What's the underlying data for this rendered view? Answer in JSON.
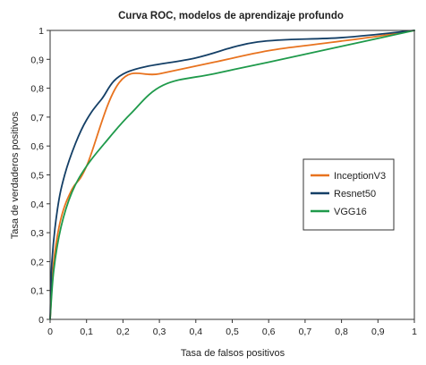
{
  "chart_data": {
    "type": "line",
    "title": "Curva ROC, modelos de aprendizaje profundo",
    "xlabel": "Tasa de falsos positivos",
    "ylabel": "Tasa de verdaderos positivos",
    "xlim": [
      0,
      1
    ],
    "ylim": [
      0,
      1
    ],
    "x_ticks": [
      0,
      0.1,
      0.2,
      0.3,
      0.4,
      0.5,
      0.6,
      0.7,
      0.8,
      0.9,
      1
    ],
    "x_tick_labels": [
      "0",
      "0,1",
      "0,2",
      "0,3",
      "0,4",
      "0,5",
      "0,6",
      "0,7",
      "0,8",
      "0,9",
      "1"
    ],
    "y_ticks": [
      0,
      0.1,
      0.2,
      0.3,
      0.4,
      0.5,
      0.6,
      0.7,
      0.8,
      0.9,
      1
    ],
    "y_tick_labels": [
      "0",
      "0,1",
      "0,2",
      "0,3",
      "0,4",
      "0,5",
      "0,6",
      "0,7",
      "0,8",
      "0,9",
      "1"
    ],
    "grid": false,
    "legend_position": "right",
    "series": [
      {
        "name": "InceptionV3",
        "color": "#e8731f",
        "x": [
          0,
          0.01,
          0.03,
          0.06,
          0.1,
          0.19,
          0.3,
          0.45,
          0.6,
          0.75,
          0.9,
          1
        ],
        "y": [
          0,
          0.2,
          0.35,
          0.45,
          0.53,
          0.82,
          0.85,
          0.89,
          0.93,
          0.955,
          0.98,
          1
        ]
      },
      {
        "name": "Resnet50",
        "color": "#143f66",
        "x": [
          0,
          0.005,
          0.02,
          0.04,
          0.07,
          0.1,
          0.14,
          0.21,
          0.4,
          0.57,
          0.8,
          1
        ],
        "y": [
          0,
          0.2,
          0.38,
          0.5,
          0.61,
          0.69,
          0.76,
          0.855,
          0.905,
          0.96,
          0.975,
          1
        ]
      },
      {
        "name": "VGG16",
        "color": "#1f9a4b",
        "x": [
          0,
          0.01,
          0.03,
          0.06,
          0.1,
          0.15,
          0.22,
          0.31,
          0.45,
          0.6,
          0.8,
          1
        ],
        "y": [
          0,
          0.17,
          0.32,
          0.44,
          0.53,
          0.61,
          0.71,
          0.81,
          0.85,
          0.89,
          0.945,
          1
        ]
      }
    ]
  }
}
